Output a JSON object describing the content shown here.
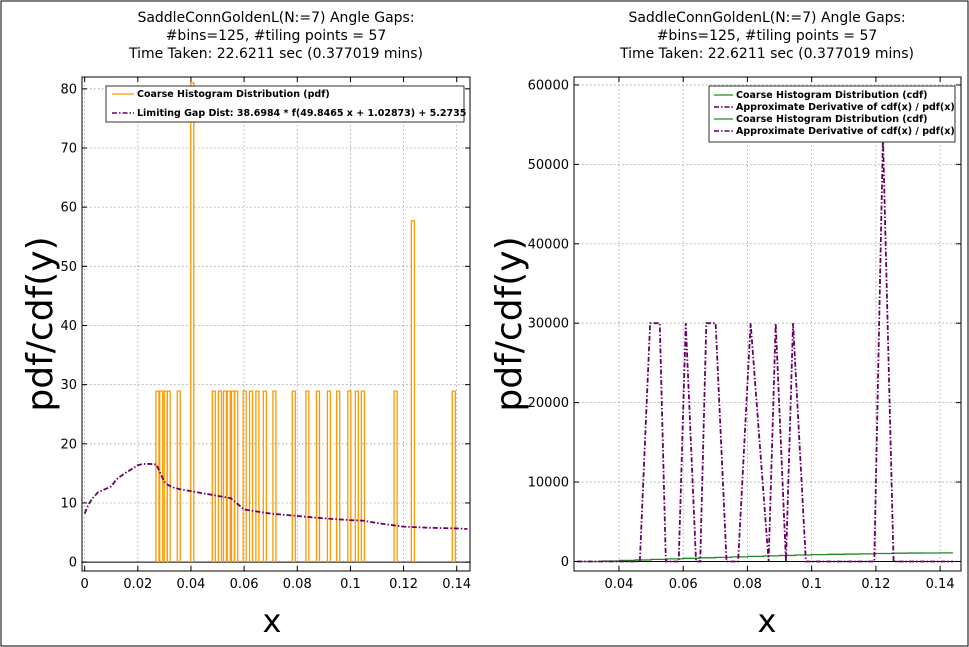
{
  "chart_data": [
    {
      "type": "line",
      "title_lines": [
        "SaddleConnGoldenL(N:=7) Angle Gaps:",
        "#bins=125, #tiling points = 57",
        "Time Taken: 22.6211 sec (0.377019 mins)"
      ],
      "xlabel": "x",
      "ylabel": "pdf/cdf(y)",
      "xlim": [
        -0.001,
        0.145
      ],
      "ylim": [
        -1.5,
        82
      ],
      "xticks": [
        0,
        0.02,
        0.04,
        0.06,
        0.08,
        0.1,
        0.12,
        0.14
      ],
      "xtick_labels": [
        "0",
        "0.02",
        "0.04",
        "0.06",
        "0.08",
        "0.1",
        "0.12",
        "0.14"
      ],
      "yticks": [
        0,
        10,
        20,
        30,
        40,
        50,
        60,
        70,
        80
      ],
      "ytick_labels": [
        "0",
        "10",
        "20",
        "30",
        "40",
        "50",
        "60",
        "70",
        "80"
      ],
      "grid": true,
      "legend_position": "top",
      "series": [
        {
          "name": "Coarse Histogram Distribution (pdf)",
          "style": "steps",
          "color": "#ff9900",
          "bin_width": 0.00114,
          "bars": [
            [
              0.0274,
              28.9
            ],
            [
              0.0288,
              28.9
            ],
            [
              0.0305,
              28.9
            ],
            [
              0.0316,
              28.9
            ],
            [
              0.0354,
              28.9
            ],
            [
              0.0405,
              81.0
            ],
            [
              0.0486,
              28.9
            ],
            [
              0.0509,
              28.9
            ],
            [
              0.0528,
              28.9
            ],
            [
              0.0542,
              28.9
            ],
            [
              0.0558,
              28.9
            ],
            [
              0.057,
              28.9
            ],
            [
              0.0602,
              28.9
            ],
            [
              0.0626,
              28.9
            ],
            [
              0.065,
              28.9
            ],
            [
              0.0678,
              28.9
            ],
            [
              0.0714,
              28.9
            ],
            [
              0.0787,
              28.9
            ],
            [
              0.0838,
              28.9
            ],
            [
              0.0878,
              28.9
            ],
            [
              0.0919,
              28.9
            ],
            [
              0.0954,
              28.9
            ],
            [
              0.0996,
              28.9
            ],
            [
              0.1024,
              28.9
            ],
            [
              0.1047,
              28.9
            ],
            [
              0.117,
              28.9
            ],
            [
              0.1235,
              57.7
            ],
            [
              0.1389,
              28.9
            ]
          ]
        },
        {
          "name": "Limiting Gap Dist: 38.6984 * f(49.8465 x + 1.02873) + 5.2735",
          "style": "dashdot",
          "color": "#660066",
          "x": [
            0,
            0.0015,
            0.003,
            0.005,
            0.008,
            0.01,
            0.012,
            0.015,
            0.018,
            0.02,
            0.022,
            0.0245,
            0.027,
            0.0285,
            0.03,
            0.0315,
            0.0335,
            0.036,
            0.04,
            0.045,
            0.05,
            0.055,
            0.06,
            0.07,
            0.08,
            0.09,
            0.1,
            0.105,
            0.11,
            0.115,
            0.12,
            0.13,
            0.14,
            0.144
          ],
          "y": [
            8.2,
            9.8,
            10.8,
            11.8,
            12.4,
            12.8,
            14.0,
            15.0,
            15.8,
            16.4,
            16.6,
            16.6,
            16.5,
            15.0,
            13.6,
            13.0,
            12.6,
            12.3,
            12.0,
            11.6,
            11.2,
            10.8,
            8.9,
            8.2,
            7.8,
            7.4,
            7.1,
            7.0,
            6.6,
            6.3,
            6.0,
            5.8,
            5.7,
            5.6
          ]
        }
      ]
    },
    {
      "type": "line",
      "title_lines": [
        "SaddleConnGoldenL(N:=7) Angle Gaps:",
        "#bins=125, #tiling points = 57",
        "Time Taken: 22.6211 sec (0.377019 mins)"
      ],
      "xlabel": "x",
      "ylabel": "pdf/cdf(y)",
      "xlim": [
        0.026,
        0.1465
      ],
      "ylim": [
        -1200,
        61000
      ],
      "xticks": [
        0.04,
        0.06,
        0.08,
        0.1,
        0.12,
        0.14
      ],
      "xtick_labels": [
        "0.04",
        "0.06",
        "0.08",
        "0.1",
        "0.12",
        "0.14"
      ],
      "yticks": [
        0,
        10000,
        20000,
        30000,
        40000,
        50000,
        60000
      ],
      "ytick_labels": [
        "0",
        "10000",
        "20000",
        "30000",
        "40000",
        "50000",
        "60000"
      ],
      "grid": true,
      "legend_position": "top-right",
      "series": [
        {
          "name": "Coarse Histogram Distribution (cdf)",
          "style": "steps",
          "color": "#228b22",
          "x": [
            0.027,
            0.035,
            0.04,
            0.045,
            0.05,
            0.055,
            0.06,
            0.065,
            0.07,
            0.075,
            0.08,
            0.085,
            0.09,
            0.095,
            0.1,
            0.105,
            0.11,
            0.115,
            0.12,
            0.125,
            0.13,
            0.135,
            0.14,
            0.144
          ],
          "y": [
            0,
            60,
            130,
            190,
            260,
            330,
            400,
            460,
            520,
            580,
            640,
            700,
            760,
            810,
            860,
            900,
            930,
            960,
            1000,
            1040,
            1060,
            1070,
            1080,
            1080
          ]
        },
        {
          "name": "Approximate Derivative of cdf(x) / pdf(x)",
          "style": "dashdot",
          "color": "#660066",
          "x": [
            0.027,
            0.0465,
            0.0497,
            0.0527,
            0.0546,
            0.0586,
            0.0608,
            0.064,
            0.0653,
            0.0672,
            0.0701,
            0.0735,
            0.0771,
            0.081,
            0.0866,
            0.0888,
            0.092,
            0.0942,
            0.0982,
            0.1195,
            0.1222,
            0.1255,
            0.14,
            0.144
          ],
          "y": [
            0,
            0,
            30000,
            30000,
            0,
            0,
            30000,
            0,
            0,
            30000,
            30000,
            0,
            0,
            30000,
            0,
            30000,
            0,
            30000,
            0,
            0,
            53500,
            0,
            0,
            0
          ]
        },
        {
          "name": "Coarse Histogram Distribution (cdf)",
          "style": "steps",
          "color": "#228b22",
          "duplicate_of": 0
        },
        {
          "name": "Approximate Derivative of cdf(x) / pdf(x)",
          "style": "dashdot",
          "color": "#660066",
          "duplicate_of": 1
        }
      ]
    }
  ]
}
